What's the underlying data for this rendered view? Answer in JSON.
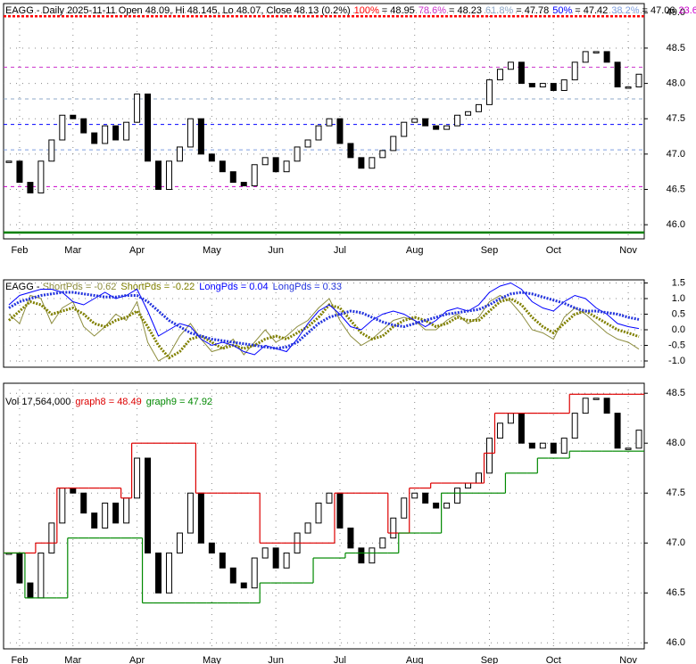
{
  "chart_data": [
    {
      "type": "candlestick",
      "title": "EAGG - Daily 2025-11-11 Open 48.09, Hi 48.145, Lo 48.07, Close 48.13 (0.2%)",
      "categories": [
        null,
        "Feb",
        null,
        null,
        null,
        null,
        "Mar",
        null,
        null,
        null,
        null,
        null,
        "Apr",
        null,
        null,
        null,
        null,
        null,
        null,
        "May",
        null,
        null,
        null,
        null,
        null,
        "Jun",
        null,
        null,
        null,
        null,
        null,
        "Jul",
        null,
        null,
        null,
        null,
        null,
        null,
        "Aug",
        null,
        null,
        null,
        null,
        null,
        null,
        "Sep",
        null,
        null,
        null,
        null,
        null,
        "Oct",
        null,
        null,
        null,
        null,
        null,
        null,
        "Nov",
        null
      ],
      "values": [
        46.9,
        46.6,
        46.45,
        46.9,
        47.2,
        47.55,
        47.5,
        47.3,
        47.15,
        47.4,
        47.2,
        47.45,
        47.85,
        46.9,
        46.5,
        46.9,
        47.1,
        47.5,
        47.0,
        46.9,
        46.75,
        46.6,
        46.55,
        46.85,
        46.95,
        46.75,
        46.9,
        47.1,
        47.2,
        47.4,
        47.5,
        47.15,
        46.95,
        46.8,
        46.95,
        47.05,
        47.25,
        47.45,
        47.5,
        47.4,
        47.35,
        47.4,
        47.55,
        47.6,
        47.7,
        48.05,
        48.2,
        48.3,
        48.0,
        47.95,
        48.0,
        47.9,
        48.05,
        48.3,
        48.45,
        48.45,
        48.3,
        47.95,
        47.95,
        48.13
      ],
      "fib_levels": [
        {
          "name": "100%",
          "label": "= 48.95",
          "value": 48.95,
          "color": "#ff0000"
        },
        {
          "name": "78.6%",
          "label": "= 48.23",
          "value": 48.23,
          "color": "#cc33cc"
        },
        {
          "name": "61.8%",
          "label": "= 47.78",
          "value": 47.78,
          "color": "#8fa9c8"
        },
        {
          "name": "50%",
          "label": "= 47.42",
          "value": 47.42,
          "color": "#0000ff"
        },
        {
          "name": "38.2%",
          "label": "= 47.06",
          "value": 47.06,
          "color": "#7f9fdf"
        },
        {
          "name": "23.6%",
          "label": "= 46.54",
          "value": 46.54,
          "color": "#cc00cc"
        },
        {
          "name": "0%",
          "label": "= 45.89",
          "value": 45.89,
          "color": "#008000"
        }
      ],
      "ylim": [
        45.8,
        49.13
      ],
      "yticks": [
        {
          "value": 46,
          "label": "46.0"
        },
        46.5,
        {
          "value": 47,
          "label": "47.0"
        },
        47.5,
        {
          "value": 48,
          "label": "48.0"
        },
        48.5,
        {
          "value": 49,
          "label": "49.0"
        }
      ],
      "grid": true
    },
    {
      "type": "line",
      "title": "EAGG - ",
      "categories": [
        null,
        "Feb",
        null,
        null,
        null,
        null,
        "Mar",
        null,
        null,
        null,
        null,
        null,
        "Apr",
        null,
        null,
        null,
        null,
        null,
        null,
        "May",
        null,
        null,
        null,
        null,
        null,
        "Jun",
        null,
        null,
        null,
        null,
        null,
        "Jul",
        null,
        null,
        null,
        null,
        null,
        null,
        "Aug",
        null,
        null,
        null,
        null,
        null,
        null,
        "Sep",
        null,
        null,
        null,
        null,
        null,
        "Oct",
        null,
        null,
        null,
        null,
        null,
        null,
        "Nov",
        null
      ],
      "series": [
        {
          "name": "ShortPds = -0.62",
          "color": "#8c8c3c",
          "values": [
            0.5,
            0.2,
            1.1,
            1.0,
            0.2,
            0.7,
            0.9,
            0.1,
            -0.2,
            0.1,
            0.5,
            0.3,
            0.9,
            -0.4,
            -1.0,
            -0.8,
            -0.2,
            0.2,
            -0.3,
            -0.7,
            -0.6,
            -0.3,
            -0.8,
            -0.4,
            0.0,
            -0.4,
            -0.2,
            0.1,
            0.3,
            0.7,
            1.0,
            0.3,
            -0.2,
            -0.5,
            -0.3,
            0.0,
            0.3,
            0.4,
            0.3,
            0.0,
            0.0,
            0.3,
            0.5,
            0.2,
            0.4,
            0.9,
            1.1,
            0.9,
            0.5,
            0.0,
            -0.1,
            -0.3,
            0.4,
            0.7,
            0.5,
            0.2,
            -0.1,
            -0.3,
            -0.4,
            -0.62
          ]
        },
        {
          "name": "ShortPds = -0.22",
          "color": "#808000",
          "values": [
            0.3,
            0.6,
            0.9,
            0.8,
            0.5,
            0.6,
            0.7,
            0.5,
            0.2,
            0.1,
            0.3,
            0.4,
            0.6,
            0.1,
            -0.5,
            -0.9,
            -0.7,
            -0.3,
            -0.2,
            -0.4,
            -0.6,
            -0.5,
            -0.6,
            -0.5,
            -0.3,
            -0.2,
            -0.3,
            -0.1,
            0.1,
            0.4,
            0.8,
            0.7,
            0.3,
            -0.1,
            -0.3,
            -0.2,
            0.1,
            0.3,
            0.4,
            0.3,
            0.1,
            0.2,
            0.4,
            0.3,
            0.3,
            0.6,
            0.9,
            1.0,
            0.8,
            0.4,
            0.1,
            -0.1,
            0.2,
            0.5,
            0.6,
            0.4,
            0.2,
            0.0,
            -0.1,
            -0.22
          ]
        },
        {
          "name": "LongPds = 0.04",
          "color": "#0000ff",
          "values": [
            0.8,
            1.1,
            1.2,
            1.3,
            1.3,
            1.2,
            0.9,
            0.8,
            1.0,
            1.2,
            1.0,
            1.1,
            1.3,
            0.6,
            -0.2,
            0.0,
            0.2,
            0.1,
            -0.3,
            -0.5,
            -0.4,
            -0.5,
            -0.7,
            -0.8,
            -0.5,
            -0.6,
            -0.7,
            -0.3,
            0.2,
            0.6,
            0.8,
            0.5,
            0.1,
            0.0,
            0.3,
            0.5,
            0.6,
            0.5,
            0.3,
            0.1,
            0.3,
            0.6,
            0.7,
            0.6,
            0.8,
            1.2,
            1.4,
            1.5,
            1.3,
            0.9,
            0.7,
            0.6,
            0.9,
            1.1,
            1.0,
            0.7,
            0.5,
            0.2,
            0.1,
            0.04
          ]
        },
        {
          "name": "LongPds = 0.33",
          "color": "#2233dd",
          "values": [
            0.7,
            0.9,
            1.0,
            1.1,
            1.15,
            1.2,
            1.2,
            1.15,
            1.1,
            1.05,
            1.05,
            1.1,
            1.1,
            0.9,
            0.6,
            0.3,
            0.1,
            -0.1,
            -0.2,
            -0.3,
            -0.35,
            -0.4,
            -0.45,
            -0.5,
            -0.55,
            -0.6,
            -0.55,
            -0.4,
            -0.1,
            0.2,
            0.4,
            0.5,
            0.6,
            0.55,
            0.4,
            0.25,
            0.15,
            0.1,
            0.2,
            0.3,
            0.4,
            0.5,
            0.55,
            0.6,
            0.65,
            0.8,
            1.0,
            1.15,
            1.2,
            1.15,
            1.05,
            0.95,
            0.85,
            0.7,
            0.6,
            0.6,
            0.55,
            0.5,
            0.4,
            0.33
          ]
        }
      ],
      "ylim": [
        -1.2,
        1.6
      ],
      "yticks": [
        {
          "value": -1,
          "label": "-1.0"
        },
        -0.5,
        {
          "value": 0,
          "label": "0.0"
        },
        0.5,
        {
          "value": 1,
          "label": "1.0"
        },
        1.5
      ],
      "grid": true
    },
    {
      "type": "candlestick",
      "title": "EAGG - Daily 2025-11-11 Open 48.09,Hi 48.145,Lo 48.07,Close 48.13 (0.2%)",
      "subtitle": "Vol 17,564,000",
      "categories": [
        null,
        "Feb",
        null,
        null,
        null,
        null,
        "Mar",
        null,
        null,
        null,
        null,
        null,
        "Apr",
        null,
        null,
        null,
        null,
        null,
        null,
        "May",
        null,
        null,
        null,
        null,
        null,
        "Jun",
        null,
        null,
        null,
        null,
        null,
        "Jul",
        null,
        null,
        null,
        null,
        null,
        null,
        "Aug",
        null,
        null,
        null,
        null,
        null,
        null,
        "Sep",
        null,
        null,
        null,
        null,
        null,
        "Oct",
        null,
        null,
        null,
        null,
        null,
        null,
        "Nov",
        null
      ],
      "values": [
        46.9,
        46.6,
        46.45,
        46.9,
        47.2,
        47.55,
        47.5,
        47.3,
        47.15,
        47.4,
        47.2,
        47.45,
        47.85,
        46.9,
        46.5,
        46.9,
        47.1,
        47.5,
        47.0,
        46.9,
        46.75,
        46.6,
        46.55,
        46.85,
        46.95,
        46.75,
        46.9,
        47.1,
        47.2,
        47.4,
        47.5,
        47.15,
        46.95,
        46.8,
        46.95,
        47.05,
        47.25,
        47.45,
        47.5,
        47.4,
        47.35,
        47.4,
        47.55,
        47.6,
        47.7,
        48.05,
        48.2,
        48.3,
        48.0,
        47.95,
        48.0,
        47.9,
        48.05,
        48.3,
        48.45,
        48.45,
        48.3,
        47.95,
        47.95,
        48.13
      ],
      "series": [
        {
          "name": "graph8 = 48.49",
          "color": "#dd0000",
          "values": [
            46.9,
            46.9,
            46.9,
            47.0,
            47.0,
            47.55,
            47.55,
            47.55,
            47.55,
            47.55,
            47.55,
            47.45,
            48.0,
            48.0,
            48.0,
            48.0,
            48.0,
            48.0,
            47.5,
            47.5,
            47.5,
            47.5,
            47.5,
            47.5,
            47.0,
            47.0,
            47.0,
            47.0,
            47.0,
            47.0,
            47.0,
            47.5,
            47.5,
            47.5,
            47.5,
            47.5,
            47.1,
            47.1,
            47.55,
            47.55,
            47.6,
            47.6,
            47.6,
            47.6,
            47.6,
            47.9,
            48.3,
            48.3,
            48.3,
            48.3,
            48.3,
            48.3,
            48.3,
            48.49,
            48.49,
            48.49,
            48.49,
            48.49,
            48.49,
            48.49
          ]
        },
        {
          "name": "graph9 = 47.92",
          "color": "#008800",
          "values": [
            46.9,
            46.9,
            46.45,
            46.45,
            46.45,
            46.45,
            47.05,
            47.05,
            47.05,
            47.05,
            47.05,
            47.05,
            47.05,
            46.4,
            46.4,
            46.4,
            46.4,
            46.4,
            46.4,
            46.4,
            46.4,
            46.4,
            46.4,
            46.4,
            46.6,
            46.6,
            46.6,
            46.6,
            46.6,
            46.85,
            46.85,
            46.85,
            46.9,
            46.9,
            46.9,
            46.9,
            46.9,
            47.1,
            47.1,
            47.1,
            47.1,
            47.5,
            47.5,
            47.5,
            47.5,
            47.5,
            47.5,
            47.7,
            47.7,
            47.7,
            47.85,
            47.85,
            47.85,
            47.92,
            47.92,
            47.92,
            47.92,
            47.92,
            47.92,
            47.92
          ]
        }
      ],
      "ylim": [
        45.94,
        48.6
      ],
      "yticks": [
        {
          "value": 46,
          "label": "46.0"
        },
        46.5,
        {
          "value": 47,
          "label": "47.0"
        },
        47.5,
        {
          "value": 48,
          "label": "48.0"
        },
        48.5
      ],
      "grid": true
    }
  ]
}
